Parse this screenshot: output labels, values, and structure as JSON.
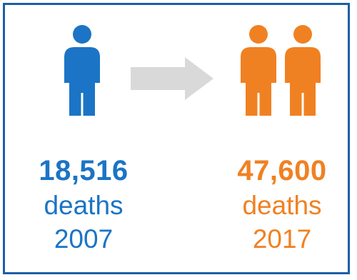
{
  "colors": {
    "border": "#1c5fa8",
    "before": "#1b74c5",
    "after": "#f08122",
    "arrow": "#d9d9d9"
  },
  "before": {
    "icon": "person-icon",
    "people_count": 1,
    "number": "18,516",
    "unit": "deaths",
    "year": "2007"
  },
  "arrow": {
    "icon": "right-arrow-icon"
  },
  "after": {
    "icon": "person-icon",
    "people_count": 2,
    "number": "47,600",
    "unit": "deaths",
    "year": "2017"
  }
}
